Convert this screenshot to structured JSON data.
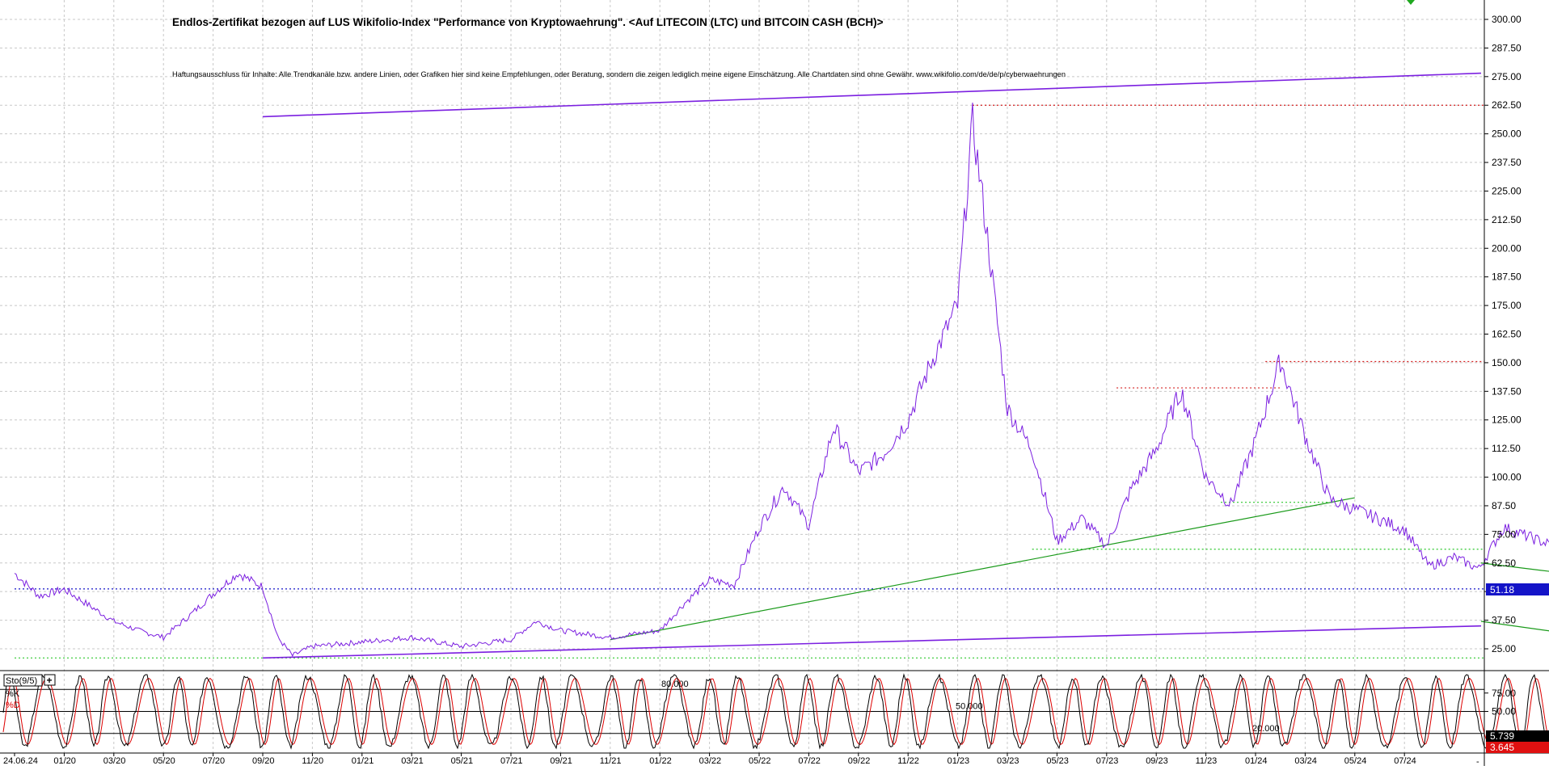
{
  "chart_data": {
    "type": "line",
    "title": "Endlos-Zertifikat bezogen auf LUS Wikifolio-Index \"Performance von Kryptowaehrung\". <Auf LITECOIN (LTC) und BITCOIN CASH (BCH)>",
    "disclaimer": "Haftungsausschluss für Inhalte: Alle Trendkanäle bzw. andere Linien, oder Grafiken hier sind keine Empfehlungen, oder Beratung, sondern die zeigen lediglich meine eigene Einschätzung. Alle Chartdaten sind ohne Gewähr. www.wikifolio.com/de/de/p/cyberwaehrungen",
    "grid": true,
    "x_ticks": [
      "24.06.24",
      "01/20",
      "03/20",
      "05/20",
      "07/20",
      "09/20",
      "11/20",
      "01/21",
      "03/21",
      "05/21",
      "07/21",
      "09/21",
      "11/21",
      "01/22",
      "03/22",
      "05/22",
      "07/22",
      "09/22",
      "11/22",
      "01/23",
      "03/23",
      "05/23",
      "07/23",
      "09/23",
      "11/23",
      "01/24",
      "03/24",
      "05/24",
      "07/24"
    ],
    "price_panel": {
      "ylim": [
        20,
        305
      ],
      "y_ticks": [
        "300.00",
        "287.50",
        "275.00",
        "262.50",
        "250.00",
        "237.50",
        "225.00",
        "212.50",
        "200.00",
        "187.50",
        "175.00",
        "162.50",
        "150.00",
        "137.50",
        "125.00",
        "112.50",
        "100.00",
        "87.50",
        "75.00",
        "62.50",
        "50.00",
        "37.50",
        "25.00"
      ],
      "series_color": "#7b1fe0",
      "series": [
        {
          "x": 0,
          "y": 58
        },
        {
          "x": 0.5,
          "y": 48
        },
        {
          "x": 1,
          "y": 51
        },
        {
          "x": 1.5,
          "y": 44
        },
        {
          "x": 2,
          "y": 37
        },
        {
          "x": 2.5,
          "y": 33
        },
        {
          "x": 3,
          "y": 30
        },
        {
          "x": 3.5,
          "y": 39
        },
        {
          "x": 4,
          "y": 49
        },
        {
          "x": 4.5,
          "y": 58
        },
        {
          "x": 5,
          "y": 52
        },
        {
          "x": 5.3,
          "y": 30
        },
        {
          "x": 5.6,
          "y": 22
        },
        {
          "x": 6,
          "y": 26
        },
        {
          "x": 7,
          "y": 28
        },
        {
          "x": 8,
          "y": 30
        },
        {
          "x": 9,
          "y": 26
        },
        {
          "x": 10,
          "y": 29
        },
        {
          "x": 10.5,
          "y": 37
        },
        {
          "x": 11,
          "y": 33
        },
        {
          "x": 12,
          "y": 30
        },
        {
          "x": 13,
          "y": 33
        },
        {
          "x": 13.5,
          "y": 45
        },
        {
          "x": 14,
          "y": 55
        },
        {
          "x": 14.5,
          "y": 53
        },
        {
          "x": 15,
          "y": 78
        },
        {
          "x": 15.5,
          "y": 96
        },
        {
          "x": 16,
          "y": 79
        },
        {
          "x": 16.5,
          "y": 122
        },
        {
          "x": 17,
          "y": 102
        },
        {
          "x": 17.5,
          "y": 110
        },
        {
          "x": 18,
          "y": 125
        },
        {
          "x": 18.5,
          "y": 152
        },
        {
          "x": 19,
          "y": 175
        },
        {
          "x": 19.3,
          "y": 255
        },
        {
          "x": 19.6,
          "y": 205
        },
        {
          "x": 20,
          "y": 130
        },
        {
          "x": 20.5,
          "y": 112
        },
        {
          "x": 21,
          "y": 72
        },
        {
          "x": 21.5,
          "y": 82
        },
        {
          "x": 22,
          "y": 70
        },
        {
          "x": 22.5,
          "y": 95
        },
        {
          "x": 23,
          "y": 112
        },
        {
          "x": 23.5,
          "y": 138
        },
        {
          "x": 24,
          "y": 100
        },
        {
          "x": 24.5,
          "y": 88
        },
        {
          "x": 25,
          "y": 116
        },
        {
          "x": 25.5,
          "y": 151
        },
        {
          "x": 26,
          "y": 118
        },
        {
          "x": 26.5,
          "y": 90
        },
        {
          "x": 27,
          "y": 86
        },
        {
          "x": 28,
          "y": 77
        },
        {
          "x": 28.5,
          "y": 61
        },
        {
          "x": 29,
          "y": 65
        },
        {
          "x": 29.5,
          "y": 60
        },
        {
          "x": 30,
          "y": 78
        },
        {
          "x": 31,
          "y": 70
        },
        {
          "x": 31.5,
          "y": 45
        },
        {
          "x": 32,
          "y": 35
        },
        {
          "x": 33,
          "y": 27
        },
        {
          "x": 34,
          "y": 31
        },
        {
          "x": 35,
          "y": 34
        },
        {
          "x": 36,
          "y": 30
        },
        {
          "x": 37,
          "y": 33
        },
        {
          "x": 38,
          "y": 36
        },
        {
          "x": 39,
          "y": 31
        },
        {
          "x": 40,
          "y": 35
        },
        {
          "x": 41,
          "y": 40
        },
        {
          "x": 42,
          "y": 35
        },
        {
          "x": 43,
          "y": 39
        },
        {
          "x": 44,
          "y": 37
        },
        {
          "x": 45,
          "y": 33
        },
        {
          "x": 45.5,
          "y": 58
        },
        {
          "x": 46,
          "y": 47
        },
        {
          "x": 47,
          "y": 37
        },
        {
          "x": 48,
          "y": 36
        },
        {
          "x": 49,
          "y": 40
        },
        {
          "x": 50,
          "y": 41
        },
        {
          "x": 51,
          "y": 39
        },
        {
          "x": 52,
          "y": 43
        },
        {
          "x": 53,
          "y": 42
        },
        {
          "x": 54,
          "y": 40
        },
        {
          "x": 54.5,
          "y": 66
        },
        {
          "x": 55,
          "y": 53
        },
        {
          "x": 55.5,
          "y": 84
        },
        {
          "x": 56,
          "y": 68
        },
        {
          "x": 56.5,
          "y": 62
        },
        {
          "x": 57,
          "y": 63
        },
        {
          "x": 57.5,
          "y": 61
        },
        {
          "x": 58,
          "y": 66
        },
        {
          "x": 58.5,
          "y": 52
        }
      ],
      "h_levels": [
        {
          "value": 262.5,
          "color": "#d42020",
          "start": 19.3
        },
        {
          "value": 139,
          "color": "#d42020",
          "start": 22.2,
          "end": 25.5
        },
        {
          "value": 150.5,
          "color": "#d42020",
          "start": 25.2
        },
        {
          "value": 89,
          "color": "#2cc72c",
          "start": 24.3,
          "end": 26.5
        },
        {
          "value": 68.5,
          "color": "#2cc72c",
          "start": 20.5
        },
        {
          "value": 21,
          "color": "#2cc72c",
          "start": 0
        },
        {
          "value": 51.18,
          "color": "#1414c8",
          "start": 0
        }
      ],
      "trendlines": [
        {
          "from": [
            5,
            257.5
          ],
          "to": [
            61,
            276.5
          ],
          "color": "#7b1fe0",
          "width": 1.6
        },
        {
          "from": [
            5,
            21
          ],
          "to": [
            61,
            35
          ],
          "color": "#7b1fe0",
          "width": 1.6
        },
        {
          "from": [
            12,
            29
          ],
          "to": [
            27,
            91
          ],
          "color": "#1a9a1a",
          "width": 1.2
        },
        {
          "from": [
            33.5,
            52
          ],
          "to": [
            55,
            62.5
          ],
          "color": "#1a9a1a",
          "width": 1.2
        },
        {
          "from": [
            33.5,
            25
          ],
          "to": [
            55,
            37
          ],
          "color": "#1a9a1a",
          "width": 1.2
        }
      ],
      "last_value": "51.18"
    },
    "oscillator": {
      "label": "Sto(9/5)",
      "plus": "+",
      "k_label": "%K",
      "d_label": "%D",
      "k_color": "#000000",
      "d_color": "#dd0000",
      "ylim": [
        -8,
        108
      ],
      "y_ticks": [
        "75.00",
        "50.00"
      ],
      "levels": [
        {
          "value": 80,
          "label": "80.000"
        },
        {
          "value": 50,
          "label": "50.000"
        },
        {
          "value": 20,
          "label": "20.000"
        }
      ],
      "last_k": "5.739",
      "last_d": "3.645",
      "cycles": 88,
      "last_k_value": 5.739,
      "last_d_value": 3.645
    }
  }
}
